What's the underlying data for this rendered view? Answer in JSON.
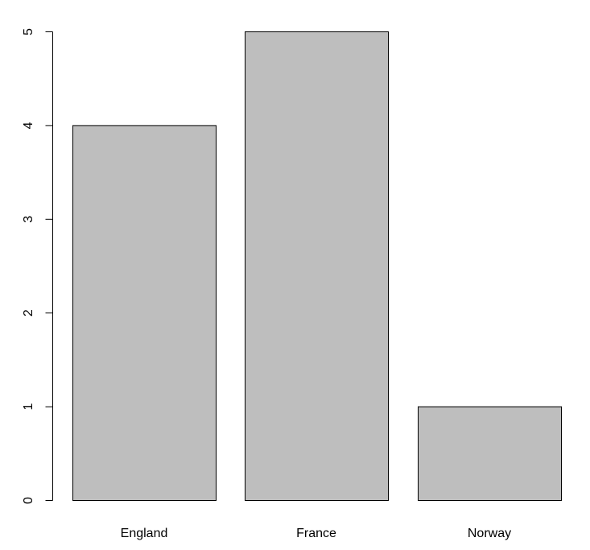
{
  "chart_data": {
    "type": "bar",
    "title": "",
    "xlabel": "",
    "ylabel": "",
    "categories": [
      "England",
      "France",
      "Norway"
    ],
    "values": [
      4,
      5,
      1
    ],
    "ylim": [
      0,
      5
    ],
    "yticks": [
      0,
      1,
      2,
      3,
      4,
      5
    ],
    "ytick_labels": [
      "0",
      "1",
      "2",
      "3",
      "4",
      "5"
    ],
    "grid": false,
    "legend": "none",
    "colors": {
      "bar_fill": "#bebebe",
      "bar_stroke": "#000000",
      "axis": "#000000",
      "background": "#ffffff"
    }
  }
}
